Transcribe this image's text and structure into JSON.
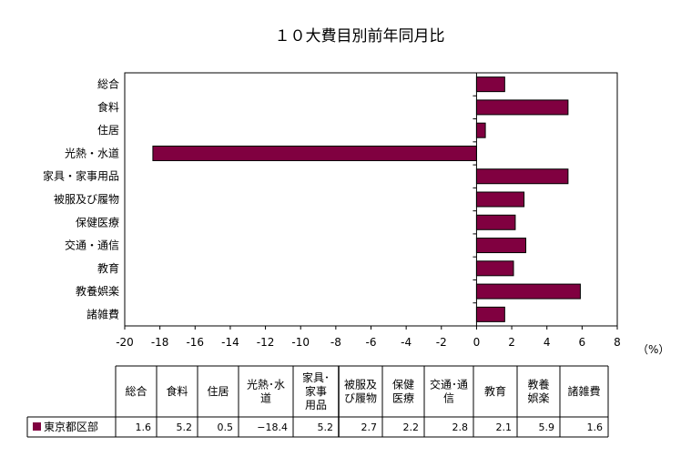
{
  "chart_data": {
    "type": "bar",
    "orientation": "horizontal",
    "title": "１０大費目別前年同月比",
    "unit_label": "（%）",
    "categories": [
      "総合",
      "食料",
      "住居",
      "光熱・水道",
      "家具・家事用品",
      "被服及び履物",
      "保健医療",
      "交通・通信",
      "教育",
      "教養娯楽",
      "諸雑費"
    ],
    "series": [
      {
        "name": "東京都区部",
        "color": "#800040",
        "values": [
          1.6,
          5.2,
          0.5,
          -18.4,
          5.2,
          2.7,
          2.2,
          2.8,
          2.1,
          5.9,
          1.6
        ]
      }
    ],
    "xlim": [
      -20,
      8
    ],
    "x_ticks": [
      -20,
      -18,
      -16,
      -14,
      -12,
      -10,
      -8,
      -6,
      -4,
      -2,
      0,
      2,
      4,
      6,
      8
    ],
    "grid": false,
    "legend": "data-table"
  },
  "table": {
    "headers": [
      [
        "総合"
      ],
      [
        "食料"
      ],
      [
        "住居"
      ],
      [
        "光熱･水",
        "道"
      ],
      [
        "家具･",
        "家事",
        "用品"
      ],
      [
        "被服及",
        "び履物"
      ],
      [
        "保健",
        "医療"
      ],
      [
        "交通･通",
        "信"
      ],
      [
        "教育"
      ],
      [
        "教養",
        "娯楽"
      ],
      [
        "諸雑費"
      ]
    ],
    "row_label": "東京都区部",
    "values": [
      "1.6",
      "5.2",
      "0.5",
      "−18.4",
      "5.2",
      "2.7",
      "2.2",
      "2.8",
      "2.1",
      "5.9",
      "1.6"
    ]
  }
}
